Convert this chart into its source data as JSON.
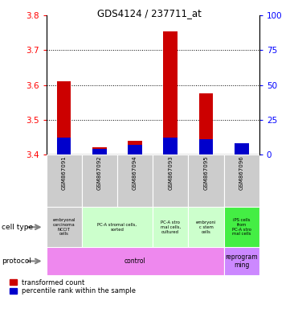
{
  "title": "GDS4124 / 237711_at",
  "samples": [
    "GSM867091",
    "GSM867092",
    "GSM867094",
    "GSM867093",
    "GSM867095",
    "GSM867096"
  ],
  "red_values": [
    3.61,
    3.42,
    3.44,
    3.755,
    3.575,
    3.41
  ],
  "blue_percentile": [
    12,
    4,
    7,
    12,
    11,
    8
  ],
  "base": 3.4,
  "ylim_left": [
    3.4,
    3.8
  ],
  "ylim_right": [
    0,
    100
  ],
  "yticks_left": [
    3.4,
    3.5,
    3.6,
    3.7,
    3.8
  ],
  "yticks_right": [
    0,
    25,
    50,
    75,
    100
  ],
  "bar_color_red": "#cc0000",
  "bar_color_blue": "#0000cc",
  "bar_width": 0.4,
  "legend_red_label": "transformed count",
  "legend_blue_label": "percentile rank within the sample",
  "cell_type_data": [
    [
      0,
      1,
      "#cccccc",
      "embryonal\ncarcinoma\nNCCIT\ncells"
    ],
    [
      1,
      3,
      "#ccffcc",
      "PC-A stromal cells,\nsorted"
    ],
    [
      3,
      4,
      "#ccffcc",
      "PC-A stro\nmal cells,\ncultured"
    ],
    [
      4,
      5,
      "#ccffcc",
      "embryoni\nc stem\ncells"
    ],
    [
      5,
      6,
      "#44ee44",
      "iPS cells\nfrom\nPC-A stro\nmal cells"
    ]
  ],
  "protocol_data": [
    [
      0,
      5,
      "#ee88ee",
      "control"
    ],
    [
      5,
      6,
      "#cc88ff",
      "reprogram\nming"
    ]
  ]
}
